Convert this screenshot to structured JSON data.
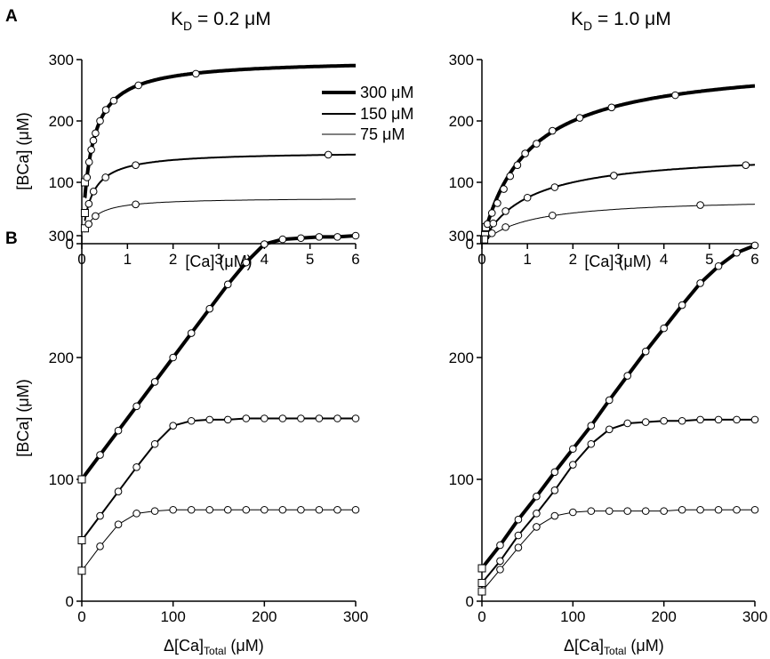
{
  "figure": {
    "panel_a_letter": "A",
    "panel_b_letter": "B",
    "title_left_prefix": "K",
    "title_left_sub": "D",
    "title_left_suffix": " = 0.2 μM",
    "title_right_prefix": "K",
    "title_right_sub": "D",
    "title_right_suffix": " = 1.0 μM"
  },
  "legend": {
    "items": [
      "300 μM",
      "150 μM",
      "75 μM"
    ]
  },
  "labels": {
    "ylabel_top": "[BCa] (μM)",
    "ylabel_bottom": "[BCa] (μM)",
    "xlabel_top_left": "[Ca] (μM)",
    "xlabel_top_right": "[Ca] (μM)",
    "xlabel_bottom_main": "Δ[Ca]",
    "xlabel_bottom_sub": "Total",
    "xlabel_bottom_unit": " (μM)"
  },
  "chart_data": [
    {
      "id": "A-left",
      "type": "line",
      "title": "K_D = 0.2 μM",
      "xlabel": "[Ca] (μM)",
      "ylabel": "[BCa] (μM)",
      "xlim": [
        0,
        6
      ],
      "ylim": [
        0,
        300
      ],
      "xticks": [
        0,
        1,
        2,
        3,
        4,
        5,
        6
      ],
      "yticks": [
        0,
        100,
        200,
        300
      ],
      "kd": 0.2,
      "series": [
        {
          "name": "300 μM",
          "bmax": 300,
          "x_end": 6,
          "square": [
            0.067,
            100
          ],
          "points": [
            [
              0.113,
              108
            ],
            [
              0.16,
              133
            ],
            [
              0.207,
              153
            ],
            [
              0.253,
              168
            ],
            [
              0.3,
              180
            ],
            [
              0.4,
              200
            ],
            [
              0.527,
              218
            ],
            [
              0.7,
              233
            ],
            [
              1.24,
              258
            ],
            [
              2.5,
              277
            ]
          ]
        },
        {
          "name": "150 μM",
          "bmax": 150,
          "x_end": 6,
          "square": [
            0.067,
            50
          ],
          "points": [
            [
              0.153,
              65
            ],
            [
              0.257,
              85
            ],
            [
              0.52,
              108
            ],
            [
              1.18,
              128
            ],
            [
              5.4,
              145
            ]
          ]
        },
        {
          "name": "75 μM",
          "bmax": 75,
          "x_end": 6,
          "square": [
            0.067,
            25
          ],
          "points": [
            [
              0.15,
              32
            ],
            [
              0.3,
              45
            ],
            [
              1.18,
              64
            ]
          ]
        }
      ]
    },
    {
      "id": "A-right",
      "type": "line",
      "title": "K_D = 1.0 μM",
      "xlabel": "[Ca] (μM)",
      "ylabel": "",
      "xlim": [
        0,
        6
      ],
      "ylim": [
        0,
        300
      ],
      "xticks": [
        0,
        1,
        2,
        3,
        4,
        5,
        6
      ],
      "yticks": [
        0,
        100,
        200,
        300
      ],
      "kd": 1.0,
      "series": [
        {
          "name": "300 μM",
          "bmax": 300,
          "x_end": 6,
          "square": [
            0.09,
            27
          ],
          "points": [
            [
              0.12,
              32
            ],
            [
              0.22,
              50
            ],
            [
              0.34,
              66
            ],
            [
              0.48,
              89
            ],
            [
              0.62,
              110
            ],
            [
              0.78,
              128
            ],
            [
              0.95,
              147
            ],
            [
              1.2,
              163
            ],
            [
              1.55,
              184
            ],
            [
              2.15,
              205
            ],
            [
              2.85,
              222
            ],
            [
              4.25,
              242
            ]
          ]
        },
        {
          "name": "150 μM",
          "bmax": 150,
          "x_end": 6,
          "square": [
            0.07,
            14
          ],
          "points": [
            [
              0.25,
              33
            ],
            [
              0.52,
              53
            ],
            [
              1.0,
              75
            ],
            [
              1.6,
              92
            ],
            [
              2.9,
              111
            ],
            [
              5.8,
              128
            ]
          ]
        },
        {
          "name": "75 μM",
          "bmax": 75,
          "x_end": 6,
          "square": [
            0.05,
            7
          ],
          "points": [
            [
              0.22,
              17
            ],
            [
              0.52,
              27
            ],
            [
              1.55,
              46
            ],
            [
              4.8,
              63
            ]
          ]
        }
      ]
    },
    {
      "id": "B-left",
      "type": "line",
      "title": "",
      "xlabel": "Δ[Ca]Total (μM)",
      "ylabel": "[BCa] (μM)",
      "xlim": [
        0,
        300
      ],
      "ylim": [
        0,
        300
      ],
      "xticks": [
        0,
        100,
        200,
        300
      ],
      "yticks": [
        0,
        100,
        200,
        300
      ],
      "kd": 0.2,
      "series": [
        {
          "name": "300 μM",
          "bmax": 300,
          "b0": 100,
          "points": [
            [
              20,
              120
            ],
            [
              40,
              140
            ],
            [
              60,
              160
            ],
            [
              80,
              180
            ],
            [
              100,
              200
            ],
            [
              120,
              220
            ],
            [
              140,
              240
            ],
            [
              160,
              260
            ],
            [
              180,
              278
            ],
            [
              200,
              293
            ],
            [
              220,
              297
            ],
            [
              240,
              298
            ],
            [
              260,
              299
            ],
            [
              280,
              299
            ],
            [
              300,
              300
            ]
          ]
        },
        {
          "name": "150 μM",
          "bmax": 150,
          "b0": 50,
          "points": [
            [
              20,
              70
            ],
            [
              40,
              90
            ],
            [
              60,
              110
            ],
            [
              80,
              129
            ],
            [
              100,
              144
            ],
            [
              120,
              148
            ],
            [
              140,
              149
            ],
            [
              160,
              149
            ],
            [
              180,
              150
            ],
            [
              200,
              150
            ],
            [
              220,
              150
            ],
            [
              240,
              150
            ],
            [
              260,
              150
            ],
            [
              280,
              150
            ],
            [
              300,
              150
            ]
          ]
        },
        {
          "name": "75 μM",
          "bmax": 75,
          "b0": 25,
          "points": [
            [
              20,
              45
            ],
            [
              40,
              63
            ],
            [
              60,
              72
            ],
            [
              80,
              74
            ],
            [
              100,
              75
            ],
            [
              120,
              75
            ],
            [
              140,
              75
            ],
            [
              160,
              75
            ],
            [
              180,
              75
            ],
            [
              200,
              75
            ],
            [
              220,
              75
            ],
            [
              240,
              75
            ],
            [
              260,
              75
            ],
            [
              280,
              75
            ],
            [
              300,
              75
            ]
          ]
        }
      ]
    },
    {
      "id": "B-right",
      "type": "line",
      "title": "",
      "xlabel": "Δ[Ca]Total (μM)",
      "ylabel": "",
      "xlim": [
        0,
        300
      ],
      "ylim": [
        0,
        300
      ],
      "xticks": [
        0,
        100,
        200,
        300
      ],
      "yticks": [
        0,
        100,
        200,
        300
      ],
      "kd": 1.0,
      "series": [
        {
          "name": "300 μM",
          "bmax": 300,
          "b0": 27,
          "points": [
            [
              20,
              46
            ],
            [
              40,
              67
            ],
            [
              60,
              86
            ],
            [
              80,
              106
            ],
            [
              100,
              125
            ],
            [
              120,
              144
            ],
            [
              140,
              165
            ],
            [
              160,
              185
            ],
            [
              180,
              205
            ],
            [
              200,
              224
            ],
            [
              220,
              243
            ],
            [
              240,
              261
            ],
            [
              260,
              275
            ],
            [
              280,
              286
            ],
            [
              300,
              292
            ]
          ]
        },
        {
          "name": "150 μM",
          "bmax": 150,
          "b0": 15,
          "points": [
            [
              20,
              33
            ],
            [
              40,
              54
            ],
            [
              60,
              72
            ],
            [
              80,
              91
            ],
            [
              100,
              112
            ],
            [
              120,
              129
            ],
            [
              140,
              141
            ],
            [
              160,
              146
            ],
            [
              180,
              147
            ],
            [
              200,
              148
            ],
            [
              220,
              148
            ],
            [
              240,
              149
            ],
            [
              260,
              149
            ],
            [
              280,
              149
            ],
            [
              300,
              149
            ]
          ]
        },
        {
          "name": "75 μM",
          "bmax": 75,
          "b0": 8,
          "points": [
            [
              20,
              26
            ],
            [
              40,
              44
            ],
            [
              60,
              61
            ],
            [
              80,
              70
            ],
            [
              100,
              73
            ],
            [
              120,
              74
            ],
            [
              140,
              74
            ],
            [
              160,
              74
            ],
            [
              180,
              74
            ],
            [
              200,
              74
            ],
            [
              220,
              75
            ],
            [
              240,
              75
            ],
            [
              260,
              75
            ],
            [
              280,
              75
            ],
            [
              300,
              75
            ]
          ]
        }
      ]
    }
  ]
}
